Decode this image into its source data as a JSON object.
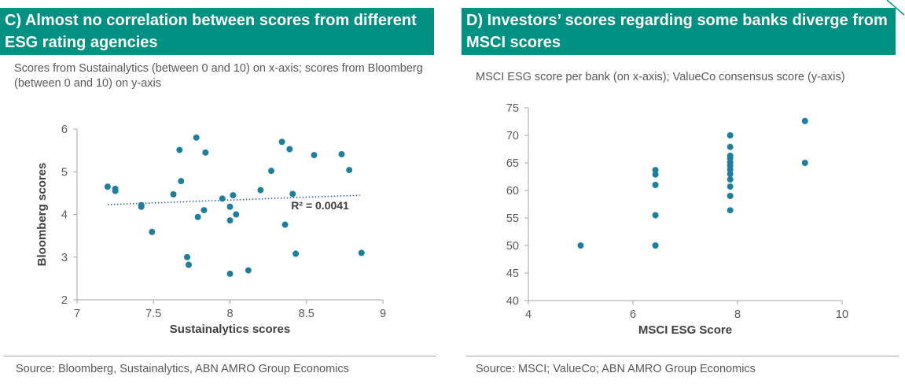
{
  "panel_c": {
    "title": "C) Almost no correlation between scores from different ESG rating agencies",
    "subtitle": "Scores from Sustainalytics (between 0 and 10) on x-axis; scores from Bloomberg (between 0 and 10) on y-axis",
    "source": "Source: Bloomberg, Sustainalytics,  ABN AMRO Group Economics"
  },
  "panel_d": {
    "title": "D) Investors’ scores regarding some banks diverge from MSCI scores",
    "subtitle": "MSCI ESG score per bank (on x-axis); ValueCo consensus score (y-axis)",
    "source": "Source: MSCI; ValueCo; ABN AMRO Group Economics"
  },
  "colors": {
    "accent": "#009183",
    "marker": "#1f7f9b",
    "trend": "#2e5f9e"
  },
  "chart_data": [
    {
      "type": "scatter",
      "xlabel": "Sustainalytics scores",
      "ylabel": "Bloomberg scores",
      "xlim": [
        7,
        9
      ],
      "ylim": [
        2,
        6
      ],
      "xticks": [
        "7",
        "7.5",
        "8",
        "8.5",
        "9"
      ],
      "yticks": [
        "2",
        "3",
        "4",
        "5",
        "6"
      ],
      "grid": false,
      "annotation": "R² = 0.0041",
      "trendline": {
        "style": "dotted",
        "x": [
          7.2,
          8.85
        ],
        "y": [
          4.23,
          4.45
        ]
      },
      "points": [
        [
          7.2,
          4.65
        ],
        [
          7.25,
          4.6
        ],
        [
          7.25,
          4.55
        ],
        [
          7.42,
          4.22
        ],
        [
          7.42,
          4.18
        ],
        [
          7.49,
          3.59
        ],
        [
          7.63,
          4.47
        ],
        [
          7.67,
          5.51
        ],
        [
          7.68,
          4.78
        ],
        [
          7.72,
          3.0
        ],
        [
          7.73,
          2.82
        ],
        [
          7.78,
          5.8
        ],
        [
          7.79,
          3.94
        ],
        [
          7.83,
          4.1
        ],
        [
          7.84,
          5.45
        ],
        [
          7.95,
          4.37
        ],
        [
          8.0,
          4.18
        ],
        [
          8.0,
          3.86
        ],
        [
          8.0,
          2.61
        ],
        [
          8.02,
          4.45
        ],
        [
          8.04,
          4.0
        ],
        [
          8.12,
          2.69
        ],
        [
          8.2,
          4.57
        ],
        [
          8.27,
          5.02
        ],
        [
          8.34,
          5.7
        ],
        [
          8.36,
          3.76
        ],
        [
          8.39,
          5.53
        ],
        [
          8.41,
          4.48
        ],
        [
          8.43,
          3.08
        ],
        [
          8.55,
          5.39
        ],
        [
          8.73,
          5.41
        ],
        [
          8.78,
          5.04
        ],
        [
          8.86,
          3.1
        ]
      ]
    },
    {
      "type": "scatter",
      "xlabel": "MSCI ESG Score",
      "ylabel": "",
      "xlim": [
        4,
        10
      ],
      "ylim": [
        40,
        75
      ],
      "xticks": [
        "4",
        "6",
        "8",
        "10"
      ],
      "yticks": [
        "40",
        "45",
        "50",
        "55",
        "60",
        "65",
        "70",
        "75"
      ],
      "grid": false,
      "points": [
        [
          5.0,
          50.0
        ],
        [
          6.43,
          63.7
        ],
        [
          6.43,
          62.9
        ],
        [
          6.43,
          61.0
        ],
        [
          6.43,
          55.5
        ],
        [
          6.43,
          50.0
        ],
        [
          7.86,
          70.0
        ],
        [
          7.86,
          67.9
        ],
        [
          7.86,
          66.3
        ],
        [
          7.86,
          65.8
        ],
        [
          7.86,
          65.1
        ],
        [
          7.86,
          64.5
        ],
        [
          7.86,
          63.8
        ],
        [
          7.86,
          63.0
        ],
        [
          7.86,
          62.0
        ],
        [
          7.86,
          60.7
        ],
        [
          7.86,
          59.0
        ],
        [
          7.86,
          56.4
        ],
        [
          9.29,
          72.6
        ],
        [
          9.29,
          65.0
        ]
      ]
    }
  ]
}
